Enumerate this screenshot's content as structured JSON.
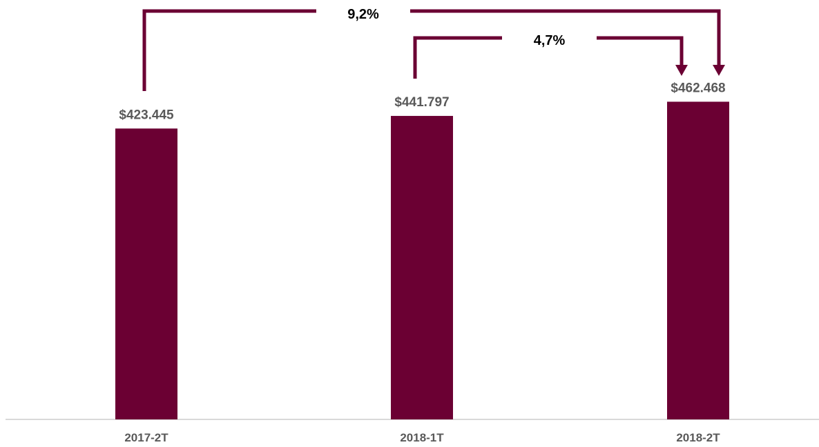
{
  "chart_data": {
    "type": "bar",
    "title": "",
    "xlabel": "",
    "ylabel": "",
    "categories": [
      "2017-2T",
      "2018-1T",
      "2018-2T"
    ],
    "values": [
      423445,
      441797,
      462468
    ],
    "value_labels": [
      "$423.445",
      "$441.797",
      "$462.468"
    ],
    "ylim": [
      0,
      480000
    ],
    "grid": false,
    "legend": "none",
    "bar_color": "#6b0033",
    "axis_color": "#d9d9d9",
    "annotations": [
      {
        "text": "9,2%",
        "from": "2017-2T",
        "to": "2018-2T"
      },
      {
        "text": "4,7%",
        "from": "2018-1T",
        "to": "2018-2T"
      }
    ]
  }
}
